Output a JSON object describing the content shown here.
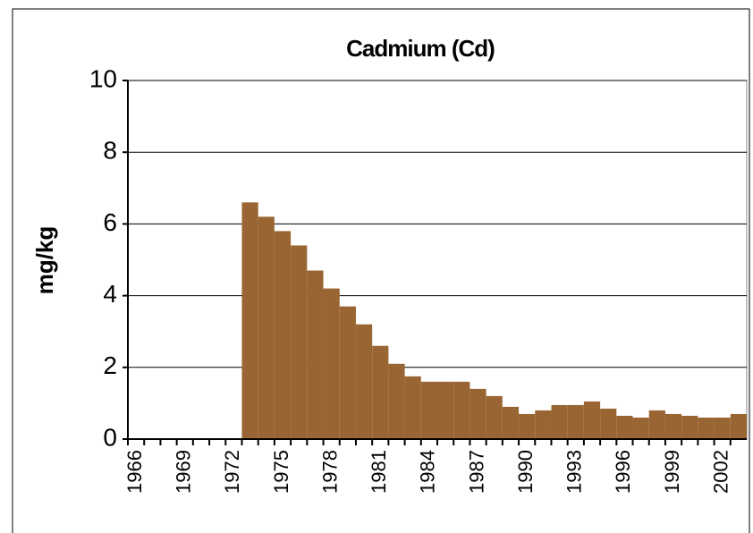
{
  "chart_data": {
    "type": "bar",
    "title": "Cadmium (Cd)",
    "y_label": "mg/kg",
    "categories": [
      "1966",
      null,
      null,
      "1969",
      null,
      null,
      "1972",
      null,
      null,
      "1975",
      null,
      null,
      "1978",
      null,
      null,
      "1981",
      null,
      null,
      "1984",
      null,
      null,
      "1987",
      null,
      null,
      "1990",
      null,
      null,
      "1993",
      null,
      null,
      "1996",
      null,
      null,
      "1999",
      null,
      null,
      "2002",
      null
    ],
    "values": [
      0,
      0,
      0,
      0,
      0,
      0,
      0,
      6.6,
      6.2,
      5.8,
      5.4,
      4.7,
      4.2,
      3.7,
      3.2,
      2.6,
      2.1,
      1.75,
      1.6,
      1.6,
      1.6,
      1.4,
      1.2,
      0.9,
      0.7,
      0.8,
      0.95,
      0.95,
      1.05,
      0.85,
      0.65,
      0.6,
      0.8,
      0.7,
      0.65,
      0.6,
      0.6,
      0.7
    ],
    "color": "#996633",
    "ylim": [
      0,
      10
    ],
    "yticks": [
      0,
      2,
      4,
      6,
      8,
      10
    ],
    "grid": true
  }
}
